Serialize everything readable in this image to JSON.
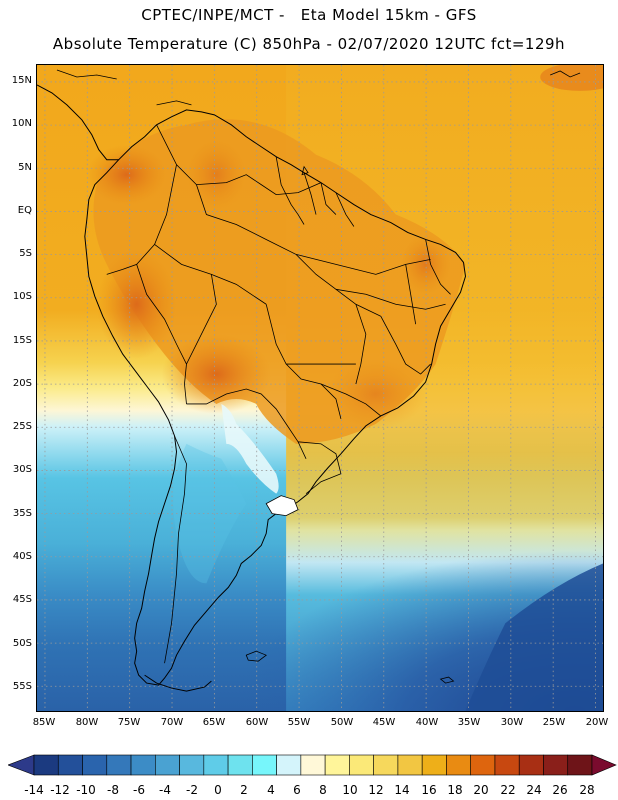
{
  "header": {
    "line1": "CPTEC/INPE/MCT -   Eta Model 15km - GFS",
    "line2": "Absolute Temperature (C) 850hPa - 02/07/2020 12UTC fct=129h"
  },
  "map": {
    "lat_labels": [
      "15N",
      "10N",
      "5N",
      "EQ",
      "5S",
      "10S",
      "15S",
      "20S",
      "25S",
      "30S",
      "35S",
      "40S",
      "45S",
      "50S",
      "55S"
    ],
    "lon_labels": [
      "85W",
      "80W",
      "75W",
      "70W",
      "65W",
      "60W",
      "55W",
      "50W",
      "45W",
      "40W",
      "35W",
      "30W",
      "25W",
      "20W"
    ],
    "colors": {
      "grid": "#9a9a9a",
      "borders": "#000000",
      "ocean_warm": "#f5b71e",
      "land_warm": "#ef9f22",
      "hot_core": "#dd6a1a",
      "cold_deep": "#1f4f97"
    }
  },
  "colorbar": {
    "labels": [
      "-14",
      "-12",
      "-10",
      "-8",
      "-6",
      "-4",
      "-2",
      "0",
      "2",
      "4",
      "6",
      "8",
      "10",
      "12",
      "14",
      "16",
      "18",
      "20",
      "22",
      "24",
      "26",
      "28"
    ],
    "colors": [
      "#1b3a80",
      "#23509a",
      "#2a64ad",
      "#3478ba",
      "#3c8cc6",
      "#4aa2d2",
      "#58b8de",
      "#5fcce8",
      "#6ee2ee",
      "#77f6fb",
      "#d4f4fb",
      "#fff8d8",
      "#fff59a",
      "#fbe978",
      "#f6d85c",
      "#f2c642",
      "#eeaf19",
      "#e98b12",
      "#de650e",
      "#c84810",
      "#a82f14",
      "#8a1f1a",
      "#6e1418"
    ],
    "low_arrow_color": "#2d3a8a",
    "high_arrow_color": "#7a0b2e"
  }
}
